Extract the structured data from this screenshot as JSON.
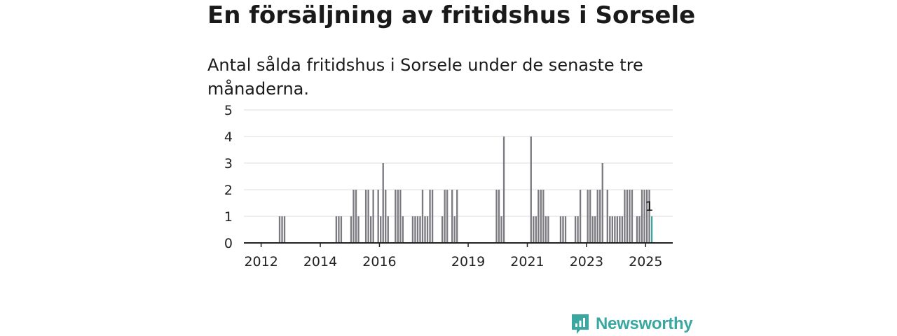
{
  "title": "En försäljning av fritidshus i Sorsele",
  "subtitle": "Antal sålda fritidshus i Sorsele under de senaste tre månaderna.",
  "brand": {
    "name": "Newsworthy",
    "color": "#3aa8a0"
  },
  "colors": {
    "bar": "#7a7a80",
    "highlight": "#3aa8a0",
    "grid": "#dcdcdc",
    "axis": "#222222"
  },
  "chart_data": {
    "type": "bar",
    "title": "En försäljning av fritidshus i Sorsele",
    "subtitle": "Antal sålda fritidshus i Sorsele under de senaste tre månaderna.",
    "ylim": [
      0,
      5
    ],
    "yticks": [
      0,
      1,
      2,
      3,
      4,
      5
    ],
    "xticks": [
      "2012",
      "2014",
      "2016",
      "2019",
      "2021",
      "2023",
      "2025"
    ],
    "xlim": [
      "2011-06",
      "2025-12"
    ],
    "grid": true,
    "annotation": {
      "x": "2025-02",
      "label": "1"
    },
    "x": [
      "2012-08",
      "2012-09",
      "2012-10",
      "2014-07",
      "2014-08",
      "2014-09",
      "2015-01",
      "2015-02",
      "2015-03",
      "2015-04",
      "2015-07",
      "2015-08",
      "2015-09",
      "2015-10",
      "2015-12",
      "2016-01",
      "2016-02",
      "2016-03",
      "2016-04",
      "2016-07",
      "2016-08",
      "2016-09",
      "2016-10",
      "2017-02",
      "2017-03",
      "2017-04",
      "2017-05",
      "2017-06",
      "2017-07",
      "2017-08",
      "2017-09",
      "2017-10",
      "2018-02",
      "2018-03",
      "2018-04",
      "2018-06",
      "2018-07",
      "2018-08",
      "2019-12",
      "2020-01",
      "2020-02",
      "2020-03",
      "2021-02",
      "2021-03",
      "2021-04",
      "2021-05",
      "2021-06",
      "2021-07",
      "2021-08",
      "2021-09",
      "2022-02",
      "2022-03",
      "2022-04",
      "2022-08",
      "2022-09",
      "2022-10",
      "2023-01",
      "2023-02",
      "2023-03",
      "2023-04",
      "2023-05",
      "2023-06",
      "2023-07",
      "2023-09",
      "2023-10",
      "2023-11",
      "2023-12",
      "2024-01",
      "2024-02",
      "2024-03",
      "2024-04",
      "2024-05",
      "2024-06",
      "2024-07",
      "2024-09",
      "2024-10",
      "2024-11",
      "2024-12",
      "2025-01",
      "2025-02",
      "2025-03"
    ],
    "values": [
      1,
      1,
      1,
      1,
      1,
      1,
      1,
      2,
      2,
      1,
      2,
      2,
      1,
      2,
      2,
      1,
      3,
      2,
      1,
      2,
      2,
      2,
      1,
      1,
      1,
      1,
      1,
      2,
      1,
      1,
      2,
      2,
      1,
      2,
      2,
      2,
      1,
      2,
      2,
      2,
      1,
      4,
      4,
      1,
      1,
      2,
      2,
      2,
      1,
      1,
      1,
      1,
      1,
      1,
      1,
      2,
      2,
      2,
      1,
      1,
      2,
      2,
      3,
      2,
      1,
      1,
      1,
      1,
      1,
      1,
      2,
      2,
      2,
      2,
      1,
      1,
      2,
      2,
      2,
      2,
      1
    ],
    "highlight_index": 80
  }
}
